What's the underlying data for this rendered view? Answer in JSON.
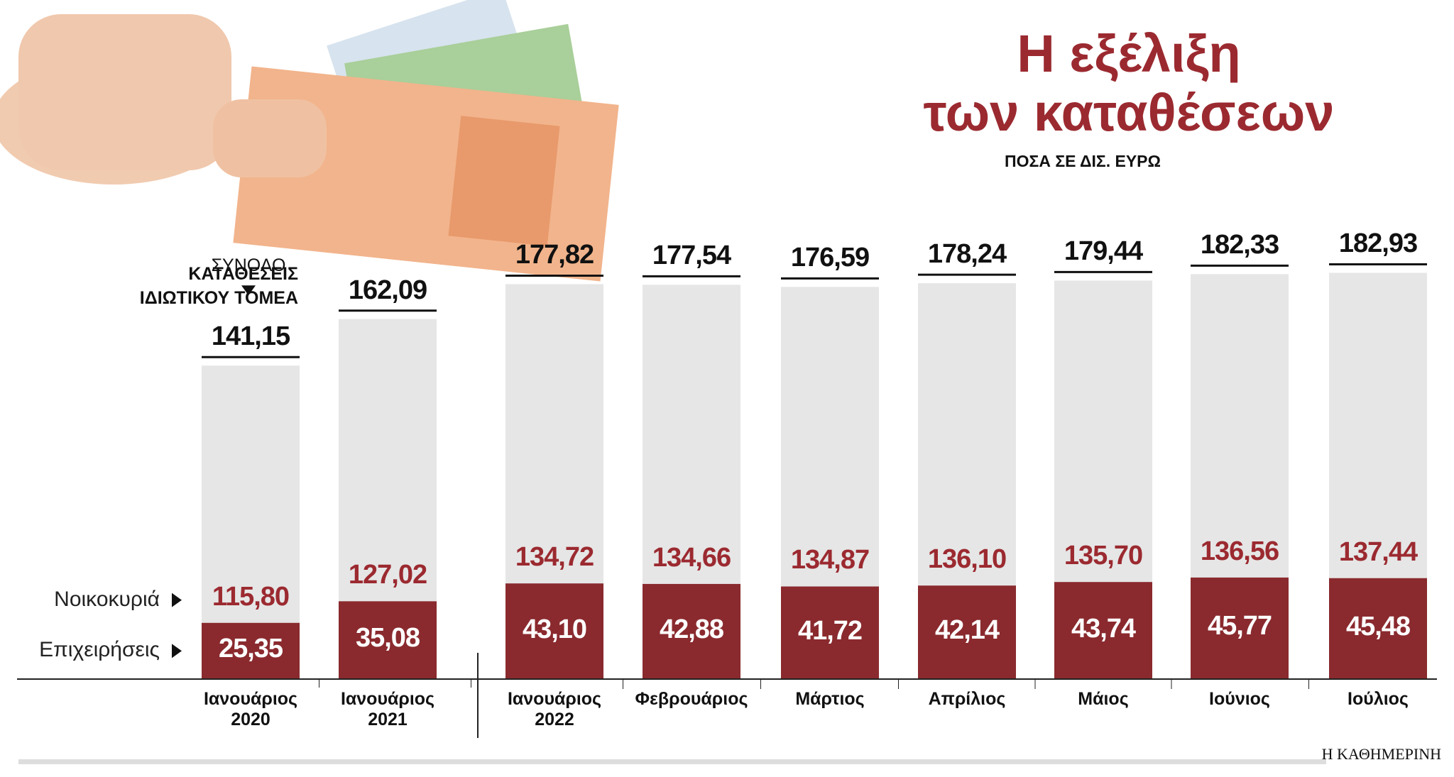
{
  "chart_data": {
    "type": "stacked-bar",
    "title": "Η εξέλιξη\nτων καταθέσεων",
    "subtitle": "ΠΟΣΑ ΣΕ ΔΙΣ. ΕΥΡΩ",
    "annotation": "ΚΑΤΑΘΕΣΕΙΣ\nΙΔΙΩΤΙΚΟΥ ΤΟΜΕΑ",
    "source": "Η ΚΑΘΗΜΕΡΙΝΗ",
    "categories": [
      "Ιανουάριος\n2020",
      "Ιανουάριος\n2021",
      "Ιανουάριος\n2022",
      "Φεβρουάριος",
      "Μάρτιος",
      "Απρίλιος",
      "Μάιος",
      "Ιούνιος",
      "Ιούλιος"
    ],
    "ylim": [
      0,
      185
    ],
    "series": [
      {
        "name": "Επιχειρήσεις",
        "color": "#8a2a2e",
        "label_color": "#ffffff",
        "values": [
          25.35,
          35.08,
          43.1,
          42.88,
          41.72,
          42.14,
          43.74,
          45.77,
          45.48
        ],
        "value_labels": [
          "25,35",
          "35,08",
          "43,10",
          "42,88",
          "41,72",
          "42,14",
          "43,74",
          "45,77",
          "45,48"
        ]
      },
      {
        "name": "Νοικοκυριά",
        "color": "#e6e6e6",
        "label_color": "#9b2a30",
        "values": [
          115.8,
          127.02,
          134.72,
          134.66,
          134.87,
          136.1,
          135.7,
          136.56,
          137.44
        ],
        "value_labels": [
          "115,80",
          "127,02",
          "134,72",
          "134,66",
          "134,87",
          "136,10",
          "135,70",
          "136,56",
          "137,44"
        ]
      }
    ],
    "totals": {
      "name": "ΣΥΝΟΛΟ",
      "values": [
        141.15,
        162.09,
        177.82,
        177.54,
        176.59,
        178.24,
        179.44,
        182.33,
        182.93
      ],
      "value_labels": [
        "141,15",
        "162,09",
        "177,82",
        "177,54",
        "176,59",
        "178,24",
        "179,44",
        "182,33",
        "182,93"
      ]
    }
  }
}
